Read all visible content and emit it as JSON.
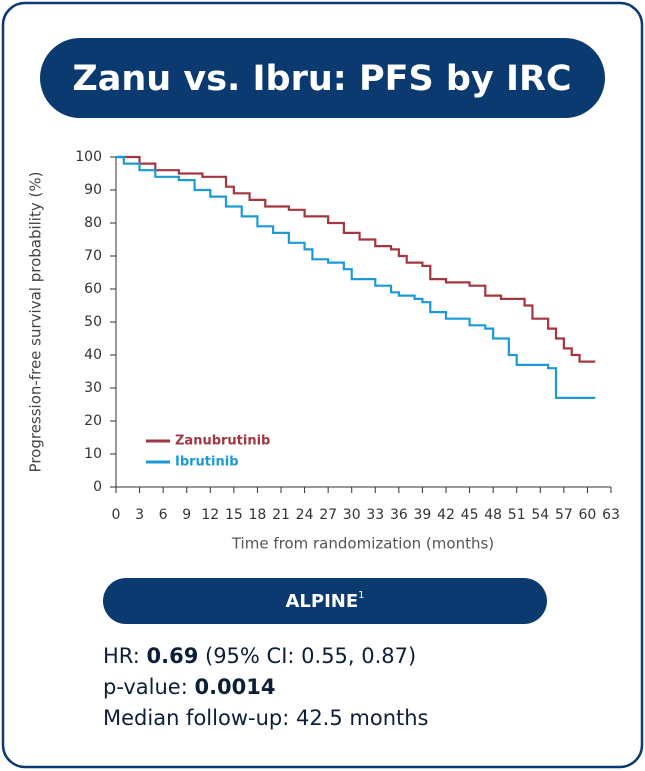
{
  "chart_data": {
    "type": "step",
    "title": "Zanu vs. Ibru: PFS by IRC",
    "x_label": "Time from randomization (months)",
    "y_label": "Progression-free survival probability (%)",
    "xlim": [
      0,
      63
    ],
    "ylim": [
      0,
      100
    ],
    "xticks": [
      0,
      3,
      6,
      9,
      12,
      15,
      18,
      21,
      24,
      27,
      30,
      33,
      36,
      39,
      42,
      45,
      48,
      51,
      54,
      57,
      60,
      63
    ],
    "yticks": [
      0,
      10,
      20,
      30,
      40,
      50,
      60,
      70,
      80,
      90,
      100
    ],
    "legend": "lower-left",
    "series": [
      {
        "name": "Zanubrutinib",
        "color": "#a3363f",
        "x": [
          0,
          3,
          5,
          8,
          11,
          14,
          15,
          17,
          19,
          22,
          24,
          27,
          29,
          31,
          33,
          35,
          36,
          37,
          39,
          40,
          42,
          45,
          47,
          49,
          52,
          53,
          55,
          56,
          57,
          58,
          59,
          61
        ],
        "values": [
          100,
          98,
          96,
          95,
          94,
          91,
          89,
          87,
          85,
          84,
          82,
          80,
          77,
          75,
          73,
          72,
          70,
          68,
          67,
          63,
          62,
          61,
          58,
          57,
          55,
          51,
          48,
          45,
          42,
          40,
          38,
          38
        ]
      },
      {
        "name": "Ibrutinib",
        "color": "#1c9ad6",
        "x": [
          0,
          1,
          3,
          5,
          8,
          10,
          12,
          14,
          16,
          18,
          20,
          22,
          24,
          25,
          27,
          29,
          30,
          33,
          35,
          36,
          38,
          39,
          40,
          42,
          45,
          47,
          48,
          50,
          51,
          55,
          56,
          61
        ],
        "values": [
          100,
          98,
          96,
          94,
          93,
          90,
          88,
          85,
          82,
          79,
          77,
          74,
          72,
          69,
          68,
          66,
          63,
          61,
          59,
          58,
          57,
          56,
          53,
          51,
          49,
          48,
          45,
          40,
          37,
          36,
          27,
          27
        ]
      }
    ]
  },
  "info": {
    "label": "ALPINE",
    "sup": "1",
    "lines": [
      [
        "HR: ",
        "0.69",
        " (95% CI: 0.55, 0.87)"
      ],
      [
        "p-value: ",
        "0.0014"
      ],
      [
        "Median follow-up: 42.5 months"
      ]
    ]
  }
}
